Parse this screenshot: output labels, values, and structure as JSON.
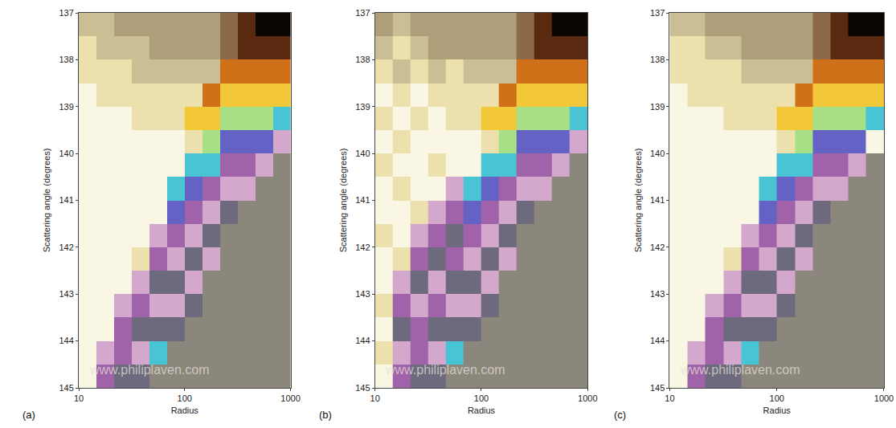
{
  "chart_data": [
    {
      "type": "heatmap",
      "panel": "(a)",
      "x_label": "Radius",
      "y_label": "Scattering angle (degrees)",
      "annotations": [
        "www.philiplaven.com"
      ],
      "log": "x",
      "grid": false,
      "tick_labels": true,
      "xlim": [
        10,
        1000
      ],
      "ylim": [
        145,
        137
      ],
      "xticks": [
        10,
        100,
        1000
      ],
      "yticks": [
        137,
        138,
        139,
        140,
        141,
        142,
        143,
        144,
        145
      ],
      "x": [
        10,
        14.7,
        21.5,
        31.6,
        46.4,
        68.1,
        100,
        147,
        215,
        316,
        464,
        681,
        1000
      ],
      "y": [
        137,
        137.5,
        138,
        138.5,
        139,
        139.5,
        140,
        140.5,
        141,
        141.5,
        142,
        142.5,
        143,
        143.5,
        144,
        144.5,
        145
      ],
      "palette": [
        "#0a0604",
        "#5a2a10",
        "#d07018",
        "#f2c838",
        "#a8e088",
        "#48c4d4",
        "#6462c4",
        "#a062a8",
        "#d4a8cc",
        "#8c877c",
        "#ae9e7a",
        "#ece0ac",
        "#faf6e4",
        "#cabe94",
        "#6c6a7c",
        "#8a6a48"
      ],
      "cells": [
        [
          13,
          13,
          10,
          10,
          10,
          10,
          10,
          10,
          15,
          1,
          0,
          0
        ],
        [
          11,
          13,
          13,
          13,
          10,
          10,
          10,
          10,
          15,
          1,
          1,
          1
        ],
        [
          11,
          11,
          11,
          13,
          13,
          13,
          13,
          13,
          2,
          2,
          2,
          2
        ],
        [
          12,
          11,
          11,
          11,
          11,
          11,
          11,
          2,
          3,
          3,
          3,
          3
        ],
        [
          12,
          12,
          12,
          11,
          11,
          11,
          3,
          3,
          4,
          4,
          4,
          5
        ],
        [
          12,
          12,
          12,
          12,
          12,
          12,
          11,
          4,
          6,
          6,
          6,
          8
        ],
        [
          12,
          12,
          12,
          12,
          12,
          12,
          5,
          5,
          7,
          7,
          8,
          9
        ],
        [
          12,
          12,
          12,
          12,
          12,
          5,
          6,
          7,
          8,
          8,
          9,
          9
        ],
        [
          12,
          12,
          12,
          12,
          12,
          6,
          7,
          8,
          14,
          9,
          9,
          9
        ],
        [
          12,
          12,
          12,
          12,
          8,
          7,
          8,
          14,
          9,
          9,
          9,
          9
        ],
        [
          12,
          12,
          12,
          11,
          7,
          8,
          14,
          8,
          9,
          9,
          9,
          9
        ],
        [
          12,
          12,
          12,
          8,
          14,
          14,
          8,
          9,
          9,
          9,
          9,
          9
        ],
        [
          12,
          12,
          8,
          7,
          8,
          8,
          14,
          9,
          9,
          9,
          9,
          9
        ],
        [
          12,
          12,
          7,
          14,
          14,
          14,
          9,
          9,
          9,
          9,
          9,
          9
        ],
        [
          12,
          8,
          7,
          8,
          5,
          9,
          9,
          9,
          9,
          9,
          9,
          9
        ],
        [
          12,
          7,
          14,
          14,
          9,
          9,
          9,
          9,
          9,
          9,
          9,
          9
        ]
      ]
    },
    {
      "type": "heatmap",
      "panel": "(b)",
      "x_label": "Radius",
      "y_label": "Scattering angle (degrees)",
      "annotations": [
        "www.philiplaven.com"
      ],
      "log": "x",
      "grid": false,
      "tick_labels": true,
      "xlim": [
        10,
        1000
      ],
      "ylim": [
        145,
        137
      ],
      "xticks": [
        10,
        100,
        1000
      ],
      "yticks": [
        137,
        138,
        139,
        140,
        141,
        142,
        143,
        144,
        145
      ],
      "x": [
        10,
        14.7,
        21.5,
        31.6,
        46.4,
        68.1,
        100,
        147,
        215,
        316,
        464,
        681,
        1000
      ],
      "y": [
        137,
        137.5,
        138,
        138.5,
        139,
        139.5,
        140,
        140.5,
        141,
        141.5,
        142,
        142.5,
        143,
        143.5,
        144,
        144.5,
        145
      ],
      "palette": [
        "#0a0604",
        "#5a2a10",
        "#d07018",
        "#f2c838",
        "#a8e088",
        "#48c4d4",
        "#6462c4",
        "#a062a8",
        "#d4a8cc",
        "#8c877c",
        "#ae9e7a",
        "#ece0ac",
        "#faf6e4",
        "#cabe94",
        "#6c6a7c",
        "#8a6a48"
      ],
      "cells": [
        [
          10,
          13,
          10,
          10,
          10,
          10,
          10,
          10,
          15,
          1,
          0,
          0
        ],
        [
          13,
          11,
          13,
          10,
          10,
          10,
          10,
          10,
          15,
          1,
          1,
          1
        ],
        [
          11,
          13,
          11,
          13,
          11,
          13,
          13,
          13,
          2,
          2,
          2,
          2
        ],
        [
          12,
          11,
          12,
          11,
          11,
          11,
          11,
          2,
          3,
          3,
          3,
          3
        ],
        [
          11,
          12,
          11,
          12,
          11,
          11,
          3,
          3,
          4,
          4,
          4,
          5
        ],
        [
          12,
          11,
          12,
          12,
          12,
          12,
          11,
          4,
          6,
          6,
          6,
          8
        ],
        [
          11,
          12,
          12,
          11,
          12,
          12,
          5,
          5,
          7,
          7,
          8,
          9
        ],
        [
          12,
          11,
          12,
          12,
          8,
          5,
          6,
          7,
          8,
          8,
          9,
          9
        ],
        [
          12,
          12,
          11,
          8,
          7,
          6,
          7,
          8,
          14,
          9,
          9,
          9
        ],
        [
          11,
          12,
          8,
          7,
          14,
          7,
          8,
          14,
          9,
          9,
          9,
          9
        ],
        [
          12,
          11,
          7,
          14,
          7,
          8,
          14,
          8,
          9,
          9,
          9,
          9
        ],
        [
          12,
          8,
          14,
          8,
          14,
          14,
          8,
          9,
          9,
          9,
          9,
          9
        ],
        [
          11,
          7,
          8,
          7,
          8,
          8,
          14,
          9,
          9,
          9,
          9,
          9
        ],
        [
          12,
          14,
          7,
          14,
          14,
          14,
          9,
          9,
          9,
          9,
          9,
          9
        ],
        [
          11,
          8,
          7,
          8,
          5,
          9,
          9,
          9,
          9,
          9,
          9,
          9
        ],
        [
          12,
          7,
          14,
          14,
          9,
          9,
          9,
          9,
          9,
          9,
          9,
          9
        ]
      ]
    },
    {
      "type": "heatmap",
      "panel": "(c)",
      "x_label": "Radius",
      "y_label": "Scattering angle (degrees)",
      "annotations": [
        "www.philiplaven.com"
      ],
      "log": "x",
      "grid": false,
      "tick_labels": true,
      "xlim": [
        10,
        1000
      ],
      "ylim": [
        145,
        137
      ],
      "xticks": [
        10,
        100,
        1000
      ],
      "yticks": [
        137,
        138,
        139,
        140,
        141,
        142,
        143,
        144,
        145
      ],
      "x": [
        10,
        14.7,
        21.5,
        31.6,
        46.4,
        68.1,
        100,
        147,
        215,
        316,
        464,
        681,
        1000
      ],
      "y": [
        137,
        137.5,
        138,
        138.5,
        139,
        139.5,
        140,
        140.5,
        141,
        141.5,
        142,
        142.5,
        143,
        143.5,
        144,
        144.5,
        145
      ],
      "palette": [
        "#0a0604",
        "#5a2a10",
        "#d07018",
        "#f2c838",
        "#a8e088",
        "#48c4d4",
        "#6462c4",
        "#a062a8",
        "#d4a8cc",
        "#8c877c",
        "#ae9e7a",
        "#ece0ac",
        "#faf6e4",
        "#cabe94",
        "#6c6a7c",
        "#8a6a48"
      ],
      "cells": [
        [
          13,
          13,
          10,
          10,
          10,
          10,
          10,
          10,
          15,
          1,
          0,
          0
        ],
        [
          11,
          11,
          13,
          13,
          10,
          10,
          10,
          10,
          15,
          1,
          1,
          1
        ],
        [
          11,
          11,
          11,
          11,
          13,
          13,
          13,
          13,
          2,
          2,
          2,
          2
        ],
        [
          12,
          11,
          11,
          11,
          11,
          11,
          11,
          2,
          3,
          3,
          3,
          3
        ],
        [
          12,
          12,
          12,
          11,
          11,
          11,
          3,
          3,
          4,
          4,
          4,
          5
        ],
        [
          12,
          12,
          12,
          12,
          12,
          12,
          11,
          4,
          6,
          6,
          6,
          12
        ],
        [
          12,
          12,
          12,
          12,
          12,
          12,
          5,
          5,
          7,
          7,
          8,
          9
        ],
        [
          12,
          12,
          12,
          12,
          12,
          5,
          6,
          7,
          8,
          8,
          9,
          9
        ],
        [
          12,
          12,
          12,
          12,
          12,
          6,
          7,
          8,
          14,
          9,
          9,
          9
        ],
        [
          12,
          12,
          12,
          12,
          8,
          7,
          8,
          14,
          9,
          9,
          9,
          9
        ],
        [
          12,
          12,
          12,
          11,
          7,
          8,
          14,
          8,
          9,
          9,
          9,
          9
        ],
        [
          12,
          12,
          12,
          8,
          14,
          14,
          8,
          9,
          9,
          9,
          9,
          9
        ],
        [
          12,
          12,
          8,
          7,
          8,
          8,
          14,
          9,
          9,
          9,
          9,
          9
        ],
        [
          12,
          12,
          7,
          14,
          14,
          14,
          9,
          9,
          9,
          9,
          9,
          9
        ],
        [
          12,
          8,
          7,
          8,
          5,
          9,
          9,
          9,
          9,
          9,
          9,
          9
        ],
        [
          12,
          7,
          14,
          14,
          9,
          9,
          9,
          9,
          9,
          9,
          9,
          9
        ]
      ]
    }
  ]
}
